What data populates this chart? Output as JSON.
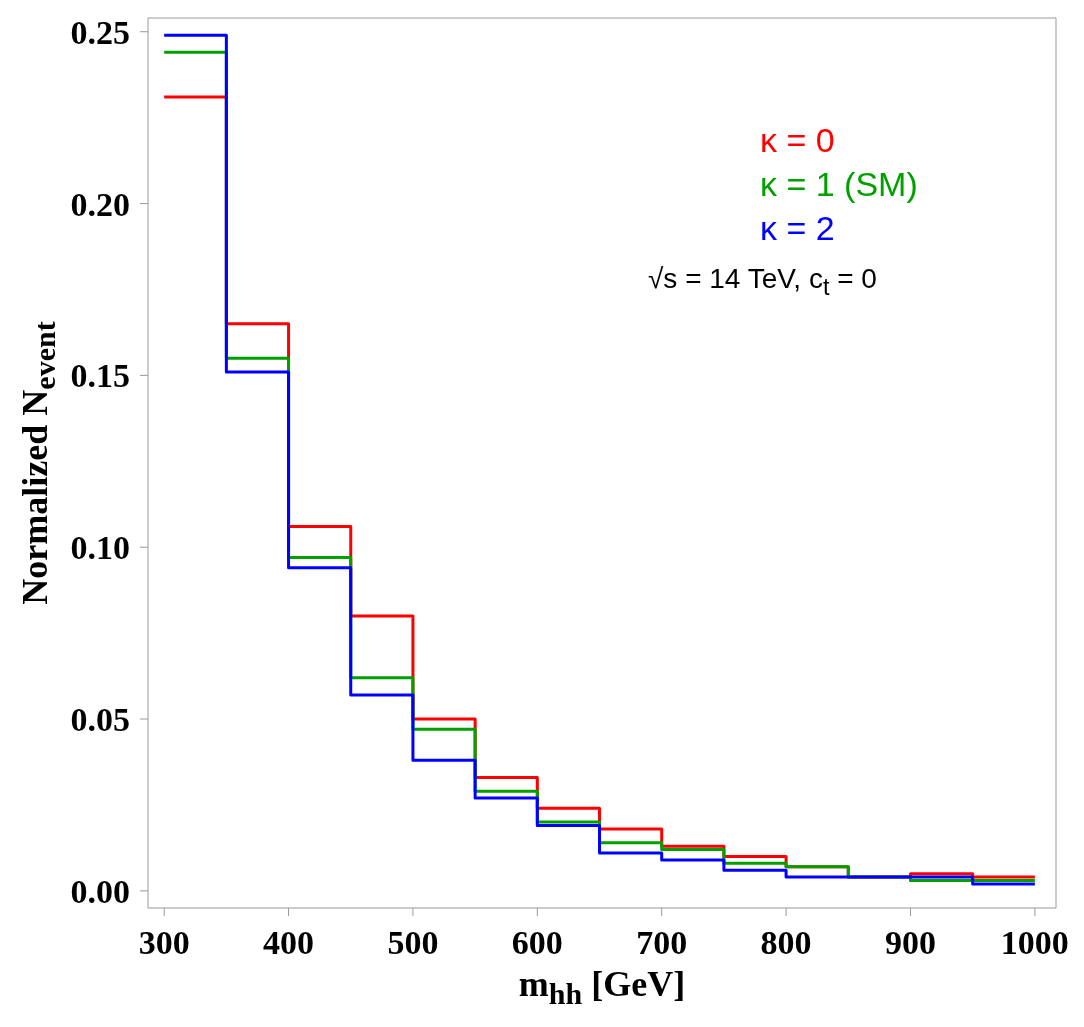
{
  "chart_data": {
    "type": "histogram",
    "xlabel": "m$_{hh}$ [GeV]",
    "ylabel": "Normalized N$_{event}$",
    "bins": [
      300,
      350,
      400,
      450,
      500,
      550,
      600,
      650,
      700,
      750,
      800,
      850,
      900,
      950,
      1000
    ],
    "series": [
      {
        "name": "κ = 0",
        "color": "#ff0000",
        "values": [
          0.231,
          0.165,
          0.106,
          0.08,
          0.05,
          0.033,
          0.024,
          0.018,
          0.013,
          0.01,
          0.007,
          0.004,
          0.005,
          0.004
        ]
      },
      {
        "name": "κ = 1 (SM)",
        "color": "#00a000",
        "values": [
          0.244,
          0.155,
          0.097,
          0.062,
          0.047,
          0.029,
          0.02,
          0.014,
          0.012,
          0.008,
          0.007,
          0.004,
          0.003,
          0.003
        ]
      },
      {
        "name": "κ = 2",
        "color": "#0000ff",
        "values": [
          0.249,
          0.151,
          0.094,
          0.057,
          0.038,
          0.027,
          0.019,
          0.011,
          0.009,
          0.006,
          0.004,
          0.004,
          0.004,
          0.002
        ]
      }
    ],
    "xlim": [
      287,
      1017
    ],
    "ylim": [
      -0.005,
      0.254
    ],
    "xticks": [
      300,
      400,
      500,
      600,
      700,
      800,
      900,
      1000
    ],
    "yticks": [
      {
        "value": 0,
        "label": "0.00"
      },
      {
        "value": 0.05,
        "label": "0.05"
      },
      {
        "value": 0.1,
        "label": "0.10"
      },
      {
        "value": 0.15,
        "label": "0.15"
      },
      {
        "value": 0.2,
        "label": "0.20"
      },
      {
        "value": 0.25,
        "label": "0.25"
      }
    ],
    "legend": "top right",
    "annotations": [
      "√s = 14 TeV, c$_{t}$ = 0"
    ]
  }
}
